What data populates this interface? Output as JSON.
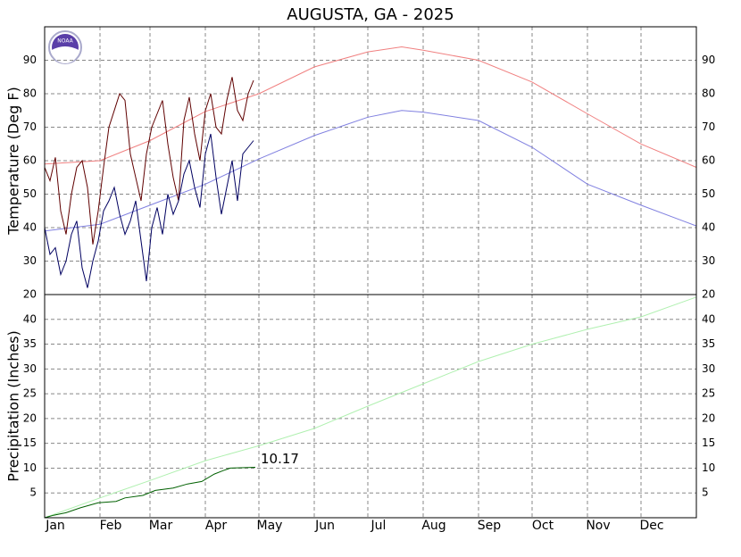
{
  "logo": "NOAA",
  "chart_data": [
    {
      "type": "line",
      "title": "AUGUSTA, GA - 2025",
      "y_label": "Temperature (Deg F)",
      "xlim": [
        0,
        365
      ],
      "xticks": [
        {
          "value": 0,
          "label": "Jan"
        },
        {
          "value": 31,
          "label": "Feb"
        },
        {
          "value": 59,
          "label": "Mar"
        },
        {
          "value": 90,
          "label": "Apr"
        },
        {
          "value": 120,
          "label": "May"
        },
        {
          "value": 151,
          "label": "Jun"
        },
        {
          "value": 181,
          "label": "Jul"
        },
        {
          "value": 212,
          "label": "Aug"
        },
        {
          "value": 243,
          "label": "Sep"
        },
        {
          "value": 273,
          "label": "Oct"
        },
        {
          "value": 304,
          "label": "Nov"
        },
        {
          "value": 334,
          "label": "Dec"
        }
      ],
      "ylim": [
        20,
        100
      ],
      "yticks": [
        20,
        30,
        40,
        50,
        60,
        70,
        80,
        90
      ],
      "grid": true,
      "series": [
        {
          "color": "#f08080",
          "x": [
            0,
            31,
            59,
            90,
            120,
            151,
            181,
            200,
            212,
            243,
            273,
            304,
            334,
            365
          ],
          "values": [
            59,
            60,
            66,
            74.7,
            80,
            88,
            92.5,
            94,
            93,
            90,
            83.5,
            74,
            65,
            58
          ]
        },
        {
          "color": "#8080e0",
          "x": [
            0,
            31,
            59,
            90,
            120,
            151,
            181,
            200,
            212,
            243,
            273,
            304,
            334,
            365
          ],
          "values": [
            39,
            41,
            46.7,
            53,
            60.5,
            67.5,
            73,
            75,
            74.5,
            72,
            64,
            53,
            46.7,
            40.5
          ]
        },
        {
          "color": "#600000",
          "x": [
            0,
            3,
            6,
            9,
            12,
            15,
            18,
            21,
            24,
            27,
            30,
            33,
            36,
            39,
            42,
            45,
            48,
            51,
            54,
            57,
            60,
            63,
            66,
            69,
            72,
            75,
            78,
            81,
            84,
            87,
            90,
            93,
            96,
            99,
            102,
            105,
            108,
            111,
            114,
            117
          ],
          "values": [
            58,
            54,
            61,
            45,
            38,
            50,
            58,
            60,
            52,
            35,
            45,
            58,
            70,
            75,
            80,
            78,
            62,
            55,
            48,
            62,
            70,
            74,
            78,
            65,
            55,
            48,
            72,
            79,
            68,
            60,
            75,
            80,
            70,
            68,
            78,
            85,
            75,
            72,
            80,
            84
          ]
        },
        {
          "color": "#000060",
          "x": [
            0,
            3,
            6,
            9,
            12,
            15,
            18,
            21,
            24,
            27,
            30,
            33,
            36,
            39,
            42,
            45,
            48,
            51,
            54,
            57,
            60,
            63,
            66,
            69,
            72,
            75,
            78,
            81,
            84,
            87,
            90,
            93,
            96,
            99,
            102,
            105,
            108,
            111,
            114,
            117
          ],
          "values": [
            40,
            32,
            34,
            26,
            30,
            38,
            42,
            28,
            22,
            30,
            36,
            45,
            48,
            52,
            44,
            38,
            42,
            48,
            36,
            24,
            40,
            46,
            38,
            50,
            44,
            48,
            56,
            60,
            52,
            46,
            62,
            68,
            55,
            44,
            52,
            60,
            48,
            62,
            64,
            66
          ]
        }
      ]
    },
    {
      "type": "line",
      "y_label": "Precipitation (Inches)",
      "ylim": [
        0,
        45
      ],
      "yticks": [
        5,
        10,
        15,
        20,
        25,
        30,
        35,
        40
      ],
      "grid": true,
      "annotation": "10.17",
      "series": [
        {
          "color": "#b0f0b0",
          "x": [
            0,
            31,
            59,
            90,
            120,
            151,
            181,
            212,
            243,
            273,
            304,
            334,
            365
          ],
          "values": [
            0,
            4,
            7.5,
            11.5,
            14.5,
            18,
            22.5,
            27,
            31.5,
            35,
            38,
            40.5,
            44.5
          ]
        },
        {
          "color": "#006000",
          "x": [
            0,
            5,
            12,
            20,
            30,
            40,
            45,
            55,
            62,
            72,
            80,
            88,
            95,
            100,
            104,
            118
          ],
          "values": [
            0,
            0.5,
            1,
            2,
            3,
            3.3,
            4,
            4.5,
            5.5,
            6,
            6.8,
            7.3,
            8.8,
            9.5,
            10,
            10.17
          ]
        }
      ]
    }
  ]
}
